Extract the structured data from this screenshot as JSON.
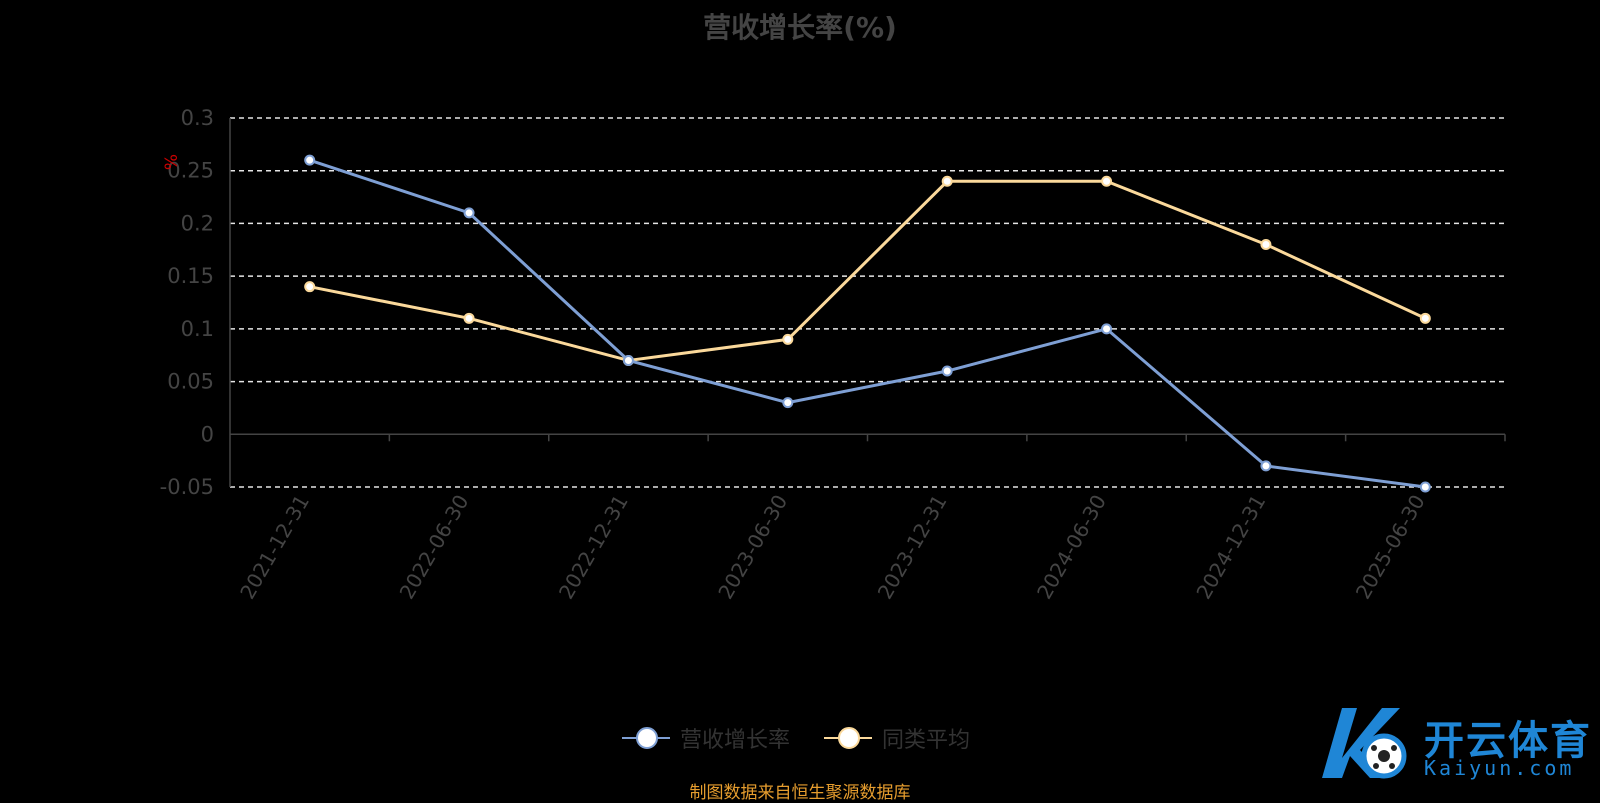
{
  "chart_data": {
    "type": "line",
    "title": "营收增长率(%)",
    "ylabel": "%",
    "xlabel": "",
    "categories": [
      "2021-12-31",
      "2022-06-30",
      "2022-12-31",
      "2023-06-30",
      "2023-12-31",
      "2024-06-30",
      "2024-12-31",
      "2025-06-30"
    ],
    "ylim": [
      -0.05,
      0.3
    ],
    "yticks": [
      "-0.05",
      "0",
      "0.05",
      "0.1",
      "0.15",
      "0.2",
      "0.25",
      "0.3"
    ],
    "grid": "dashed horizontal",
    "legend_position": "bottom-center",
    "series": [
      {
        "name": "营收增长率",
        "color": "#7e9fd4",
        "values": [
          0.26,
          0.21,
          0.07,
          0.03,
          0.06,
          0.1,
          -0.03,
          -0.05
        ]
      },
      {
        "name": "同类平均",
        "color": "#fbd99b",
        "values": [
          0.14,
          0.11,
          0.07,
          0.09,
          0.24,
          0.24,
          0.18,
          0.11
        ]
      }
    ]
  },
  "legend": {
    "items": [
      {
        "label": "营收增长率",
        "color": "#7e9fd4"
      },
      {
        "label": "同类平均",
        "color": "#fbd99b"
      }
    ]
  },
  "footer": {
    "source": "制图数据来自恒生聚源数据库"
  },
  "watermark": {
    "logo_icon": "k-soccer-logo-icon",
    "text_cn": "开云体育",
    "text_en": "Kaiyun.com"
  }
}
